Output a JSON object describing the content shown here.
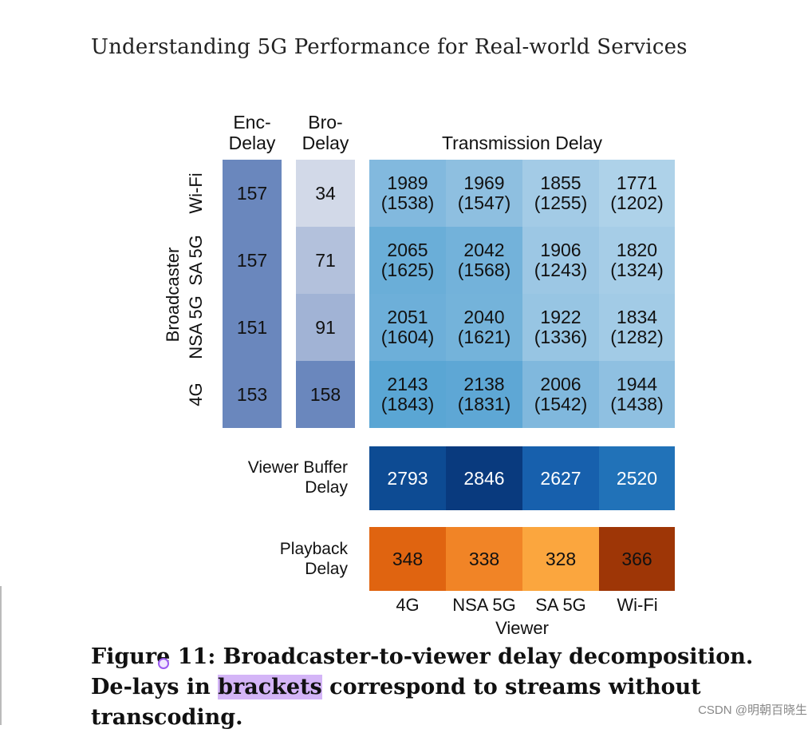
{
  "header": {
    "title": "Understanding 5G Performance for Real-world Services"
  },
  "figure": {
    "col_headers": {
      "enc": [
        "Enc-",
        "Delay"
      ],
      "bro": [
        "Bro-",
        "Delay"
      ],
      "trans": "Transmission Delay"
    },
    "broadcaster_label": "Broadcaster",
    "rows": [
      "Wi-Fi",
      "SA 5G",
      "NSA 5G",
      "4G"
    ],
    "enc_delay": [
      "157",
      "157",
      "151",
      "153"
    ],
    "bro_delay": [
      "34",
      "71",
      "91",
      "158"
    ],
    "transmission": [
      [
        [
          "1989",
          "(1538)"
        ],
        [
          "1969",
          "(1547)"
        ],
        [
          "1855",
          "(1255)"
        ],
        [
          "1771",
          "(1202)"
        ]
      ],
      [
        [
          "2065",
          "(1625)"
        ],
        [
          "2042",
          "(1568)"
        ],
        [
          "1906",
          "(1243)"
        ],
        [
          "1820",
          "(1324)"
        ]
      ],
      [
        [
          "2051",
          "(1604)"
        ],
        [
          "2040",
          "(1621)"
        ],
        [
          "1922",
          "(1336)"
        ],
        [
          "1834",
          "(1282)"
        ]
      ],
      [
        [
          "2143",
          "(1843)"
        ],
        [
          "2138",
          "(1831)"
        ],
        [
          "2006",
          "(1542)"
        ],
        [
          "1944",
          "(1438)"
        ]
      ]
    ],
    "viewer_buffer_label": [
      "Viewer Buffer",
      "Delay"
    ],
    "viewer_buffer": [
      "2793",
      "2846",
      "2627",
      "2520"
    ],
    "playback_label": [
      "Playback",
      "Delay"
    ],
    "playback": [
      "348",
      "338",
      "328",
      "366"
    ],
    "viewer_cols": [
      "4G",
      "NSA 5G",
      "SA 5G",
      "Wi-Fi"
    ],
    "viewer_axis": "Viewer",
    "colors": {
      "enc": [
        "#6a87bd",
        "#6a87bd",
        "#6a87bd",
        "#6a87bd"
      ],
      "bro": [
        "#d2d9e8",
        "#b3c1dc",
        "#a1b3d5",
        "#6a87bd"
      ],
      "trans": [
        [
          "#82b9de",
          "#8ebfe0",
          "#a3cbe6",
          "#aed2e9"
        ],
        [
          "#6aaed8",
          "#73b2da",
          "#9cc7e4",
          "#a6cde7"
        ],
        [
          "#6dafd9",
          "#74b3da",
          "#97c5e3",
          "#a2cbe6"
        ],
        [
          "#5aa6d4",
          "#5ea7d5",
          "#80b8dd",
          "#8fc0e1"
        ]
      ],
      "buffer": [
        "#0d4b93",
        "#093a7e",
        "#1760ad",
        "#2172b8"
      ],
      "playback": [
        "#e06410",
        "#f18426",
        "#fba63e",
        "#9e3606"
      ],
      "buffer_text": "#ffffff",
      "accent_highlight": "#d4b5f7"
    }
  },
  "caption": {
    "part1": "Figure",
    "part2": " 11: Broadcaster-to-viewer delay decomposition. De-lays in ",
    "highlight": "brackets",
    "part3": " correspond to streams without transcoding."
  },
  "watermark": "CSDN @明朝百晓生"
}
